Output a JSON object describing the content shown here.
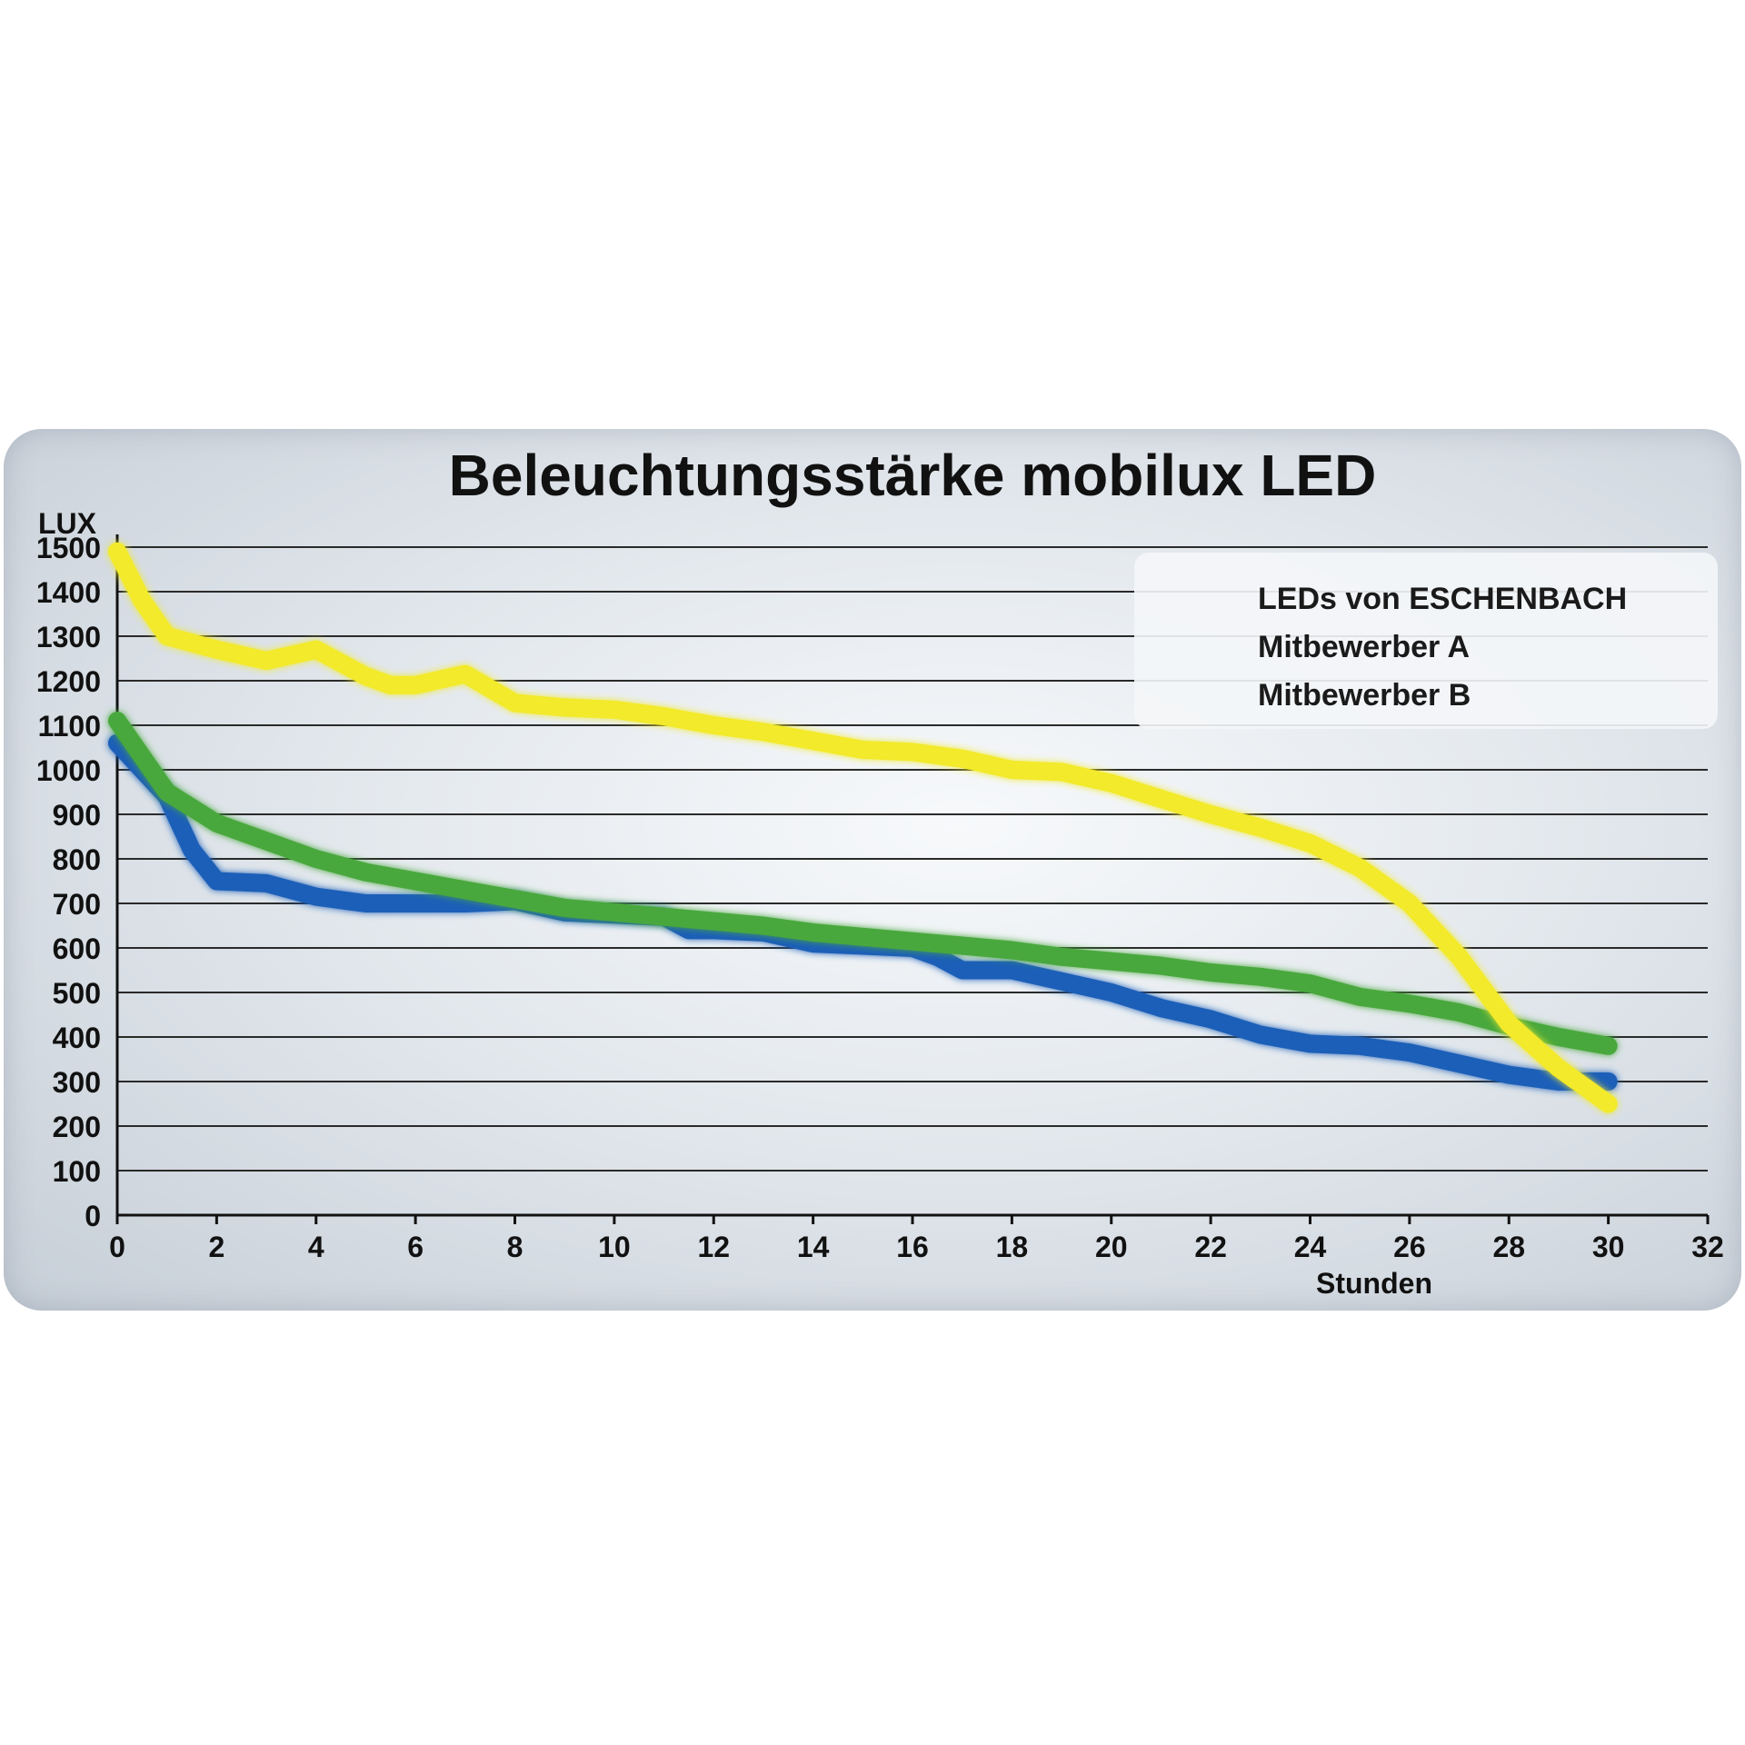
{
  "chart_data": {
    "type": "line",
    "title": "Beleuchtungsstärke mobilux LED",
    "ylabel": "LUX",
    "xlabel": "Stunden",
    "xlim": [
      0,
      32
    ],
    "ylim": [
      0,
      1500
    ],
    "x_ticks": [
      "0",
      "2",
      "4",
      "6",
      "8",
      "10",
      "12",
      "14",
      "16",
      "18",
      "20",
      "22",
      "24",
      "26",
      "28",
      "30",
      "32"
    ],
    "y_ticks": [
      "1500",
      "1400",
      "1300",
      "1200",
      "1100",
      "1000",
      "900",
      "800",
      "700",
      "600",
      "500",
      "400",
      "300",
      "200",
      "100",
      "0"
    ],
    "grid": true,
    "legend_position": "top-right",
    "series": [
      {
        "name": "LEDs von ESCHENBACH",
        "color": "#f2ea2a",
        "x": [
          0,
          0.5,
          1,
          2,
          3,
          4,
          5,
          5.5,
          6,
          7,
          8,
          9,
          10,
          11,
          12,
          13,
          14,
          15,
          16,
          17,
          18,
          19,
          20,
          21,
          22,
          23,
          24,
          25,
          26,
          27,
          28,
          29,
          30
        ],
        "y": [
          1490,
          1380,
          1300,
          1270,
          1245,
          1270,
          1210,
          1190,
          1190,
          1215,
          1150,
          1140,
          1135,
          1120,
          1100,
          1085,
          1065,
          1045,
          1040,
          1025,
          1000,
          995,
          970,
          935,
          900,
          870,
          835,
          780,
          700,
          580,
          430,
          330,
          250
        ]
      },
      {
        "name": "Mitbewerber A",
        "color": "#4aa83e",
        "x": [
          0,
          1,
          2,
          3,
          4,
          5,
          6,
          7,
          8,
          9,
          10,
          11,
          12,
          13,
          14,
          15,
          16,
          17,
          18,
          19,
          20,
          21,
          22,
          23,
          24,
          25,
          26,
          27,
          28,
          29,
          30
        ],
        "y": [
          1110,
          950,
          880,
          840,
          800,
          770,
          750,
          730,
          710,
          690,
          680,
          670,
          660,
          650,
          635,
          625,
          615,
          605,
          595,
          580,
          570,
          560,
          545,
          535,
          520,
          490,
          475,
          455,
          425,
          400,
          380
        ]
      },
      {
        "name": "Mitbewerber B",
        "color": "#1f5fb8",
        "x": [
          0,
          1,
          1.5,
          2,
          3,
          4,
          5,
          6,
          7,
          8,
          9,
          10,
          11,
          11.5,
          12,
          13,
          14,
          15,
          16,
          16.5,
          17,
          18,
          19,
          20,
          21,
          22,
          23,
          24,
          25,
          26,
          27,
          28,
          29,
          30
        ],
        "y": [
          1060,
          940,
          820,
          750,
          745,
          715,
          700,
          700,
          700,
          705,
          680,
          675,
          670,
          640,
          640,
          635,
          610,
          605,
          600,
          580,
          550,
          550,
          525,
          500,
          465,
          440,
          405,
          385,
          380,
          365,
          340,
          315,
          300,
          300
        ]
      }
    ]
  }
}
